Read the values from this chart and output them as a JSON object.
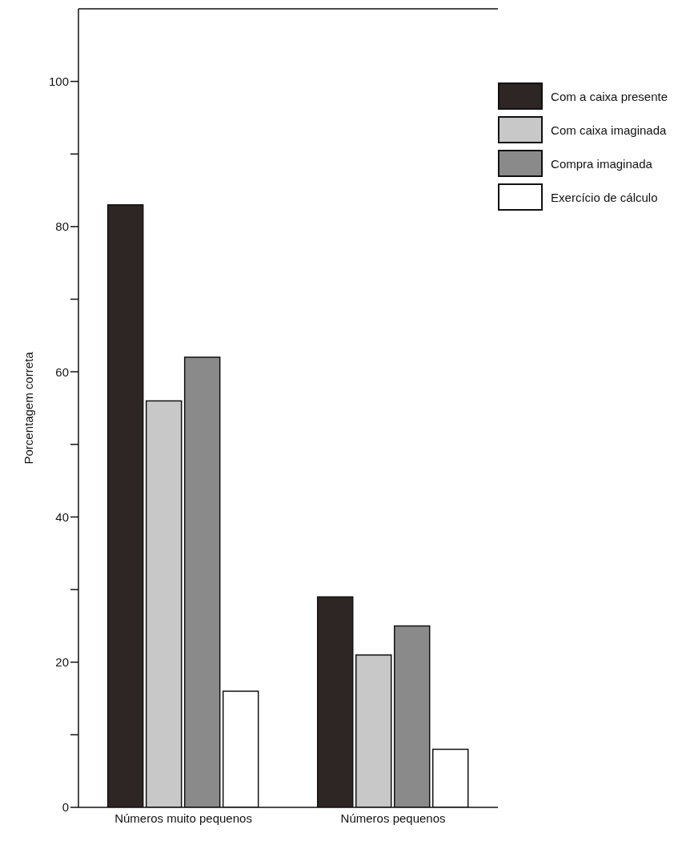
{
  "chart_data": {
    "type": "bar",
    "ylabel": "Porcentagem correta",
    "categories": [
      "Números muito pequenos",
      "Números pequenos"
    ],
    "series": [
      {
        "name": "Com a caixa presente",
        "color": "#2e2624",
        "values": [
          83,
          29
        ]
      },
      {
        "name": "Com caixa imaginada",
        "color": "#c8c8c8",
        "values": [
          56,
          21
        ]
      },
      {
        "name": "Compra imaginada",
        "color": "#8a8a8a",
        "values": [
          62,
          25
        ]
      },
      {
        "name": "Exercício de cálculo",
        "color": "#ffffff",
        "values": [
          16,
          8
        ]
      }
    ],
    "ylim": [
      0,
      110
    ],
    "yticks": [
      0,
      {
        "value": 10,
        "label": null
      },
      20,
      {
        "value": 30,
        "label": null
      },
      40,
      {
        "value": 50,
        "label": null
      },
      60,
      {
        "value": 70,
        "label": null
      },
      80,
      {
        "value": 90,
        "label": null
      },
      100
    ],
    "grid": false,
    "legend": "top right"
  }
}
